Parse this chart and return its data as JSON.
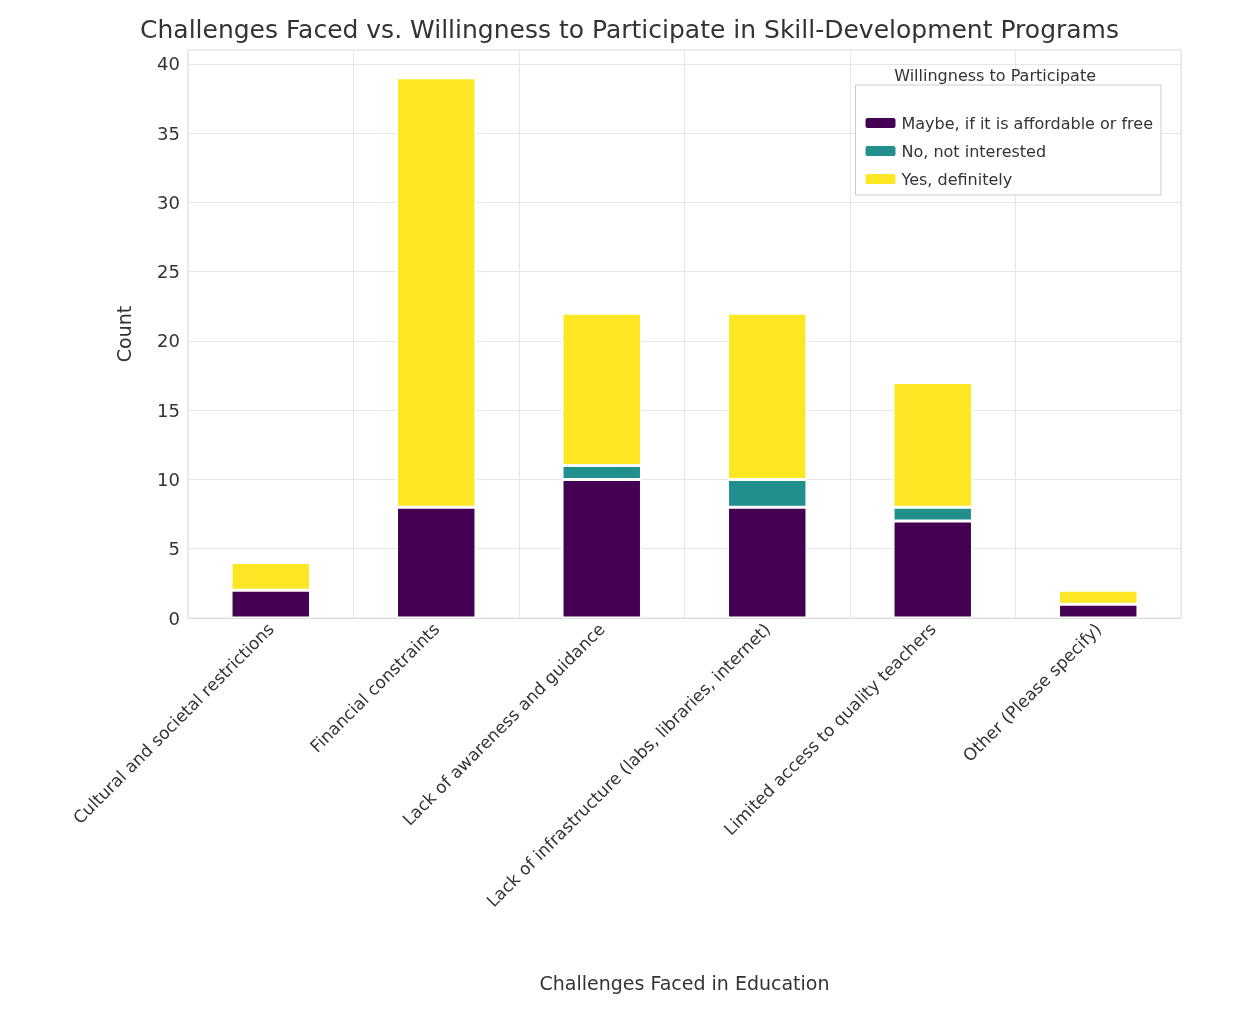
{
  "chart_data": {
    "type": "bar",
    "title": "Challenges Faced vs. Willingness to Participate in Skill-Development Programs",
    "xlabel": "Challenges Faced in Education",
    "ylabel": "Count",
    "legend_title": "Willingness to Participate",
    "categories": [
      "Cultural and societal restrictions",
      "Financial constraints",
      "Lack of awareness and guidance",
      "Lack of infrastructure (labs, libraries, internet)",
      "Limited access to quality teachers",
      "Other (Please specify)"
    ],
    "series": [
      {
        "name": "Maybe, if it is affordable or free",
        "color": "#440154",
        "values": [
          2,
          8,
          10,
          8,
          7,
          1
        ]
      },
      {
        "name": "No, not interested",
        "color": "#21908d",
        "values": [
          0,
          0,
          1,
          2,
          1,
          0
        ]
      },
      {
        "name": "Yes, definitely",
        "color": "#fde725",
        "values": [
          2,
          31,
          11,
          12,
          9,
          1
        ]
      }
    ],
    "stacked": true,
    "ylim": [
      0,
      41
    ],
    "yticks": [
      0,
      5,
      10,
      15,
      20,
      25,
      30,
      35,
      40
    ],
    "grid": true,
    "legend": "top right"
  }
}
